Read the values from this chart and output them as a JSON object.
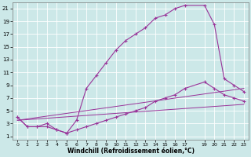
{
  "xlabel": "Windchill (Refroidissement éolien,°C)",
  "bg_color": "#cce8e8",
  "line_color": "#993399",
  "xlim": [
    -0.5,
    23.5
  ],
  "ylim": [
    0.5,
    22
  ],
  "yticks": [
    1,
    3,
    5,
    7,
    9,
    11,
    13,
    15,
    17,
    19,
    21
  ],
  "xticks": [
    0,
    1,
    2,
    3,
    4,
    5,
    6,
    7,
    8,
    9,
    10,
    11,
    12,
    13,
    14,
    15,
    16,
    17,
    19,
    20,
    21,
    22,
    23
  ],
  "curve_main_x": [
    0,
    1,
    2,
    3,
    4,
    5,
    6,
    7,
    8,
    9,
    10,
    11,
    12,
    13,
    14,
    15,
    16,
    17,
    19,
    20,
    21,
    22,
    23
  ],
  "curve_main_y": [
    4.0,
    2.5,
    2.5,
    3.0,
    2.0,
    1.5,
    3.5,
    8.5,
    10.5,
    12.5,
    14.5,
    16.0,
    17.0,
    18.0,
    19.5,
    20.0,
    21.0,
    21.5,
    21.5,
    18.5,
    10.0,
    9.0,
    8.0
  ],
  "curve_lower_x": [
    0,
    1,
    2,
    3,
    4,
    5,
    6,
    7,
    8,
    9,
    10,
    11,
    12,
    13,
    14,
    15,
    16,
    17,
    19,
    20,
    21,
    22,
    23
  ],
  "curve_lower_y": [
    4.0,
    2.5,
    2.5,
    2.5,
    2.0,
    1.5,
    2.0,
    2.5,
    3.0,
    3.5,
    4.0,
    4.5,
    5.0,
    5.5,
    6.5,
    7.0,
    7.5,
    8.5,
    9.5,
    8.5,
    7.5,
    7.0,
    6.5
  ],
  "line1_x": [
    0,
    23
  ],
  "line1_y": [
    3.5,
    8.5
  ],
  "line2_x": [
    0,
    23
  ],
  "line2_y": [
    3.5,
    6.0
  ]
}
